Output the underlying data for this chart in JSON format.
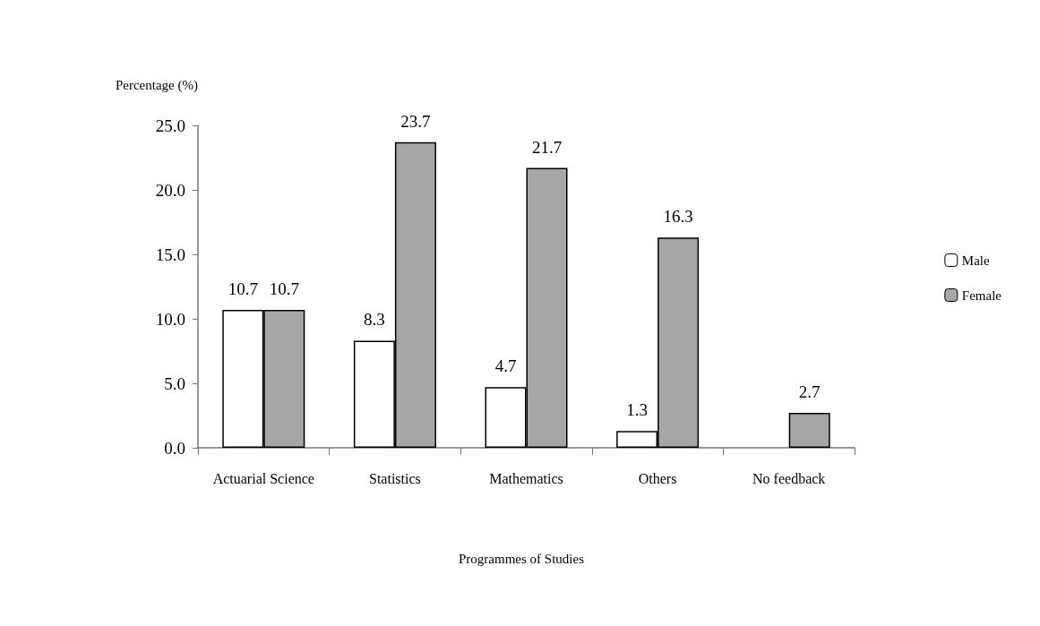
{
  "chart_data": {
    "type": "bar",
    "ylabel": "Percentage (%)",
    "xlabel": "Programmes of Studies",
    "categories": [
      "Actuarial Science",
      "Statistics",
      "Mathematics",
      "Others",
      "No feedback"
    ],
    "series": [
      {
        "name": "Male",
        "color": "#ffffff",
        "values": [
          10.7,
          8.3,
          4.7,
          1.3,
          null
        ]
      },
      {
        "name": "Female",
        "color": "#a6a6a6",
        "values": [
          10.7,
          23.7,
          21.7,
          16.3,
          2.7
        ]
      }
    ],
    "ylim": [
      0,
      25
    ],
    "yticks": [
      {
        "value": 0,
        "label": "0.0"
      },
      {
        "value": 5,
        "label": "5.0"
      },
      {
        "value": 10,
        "label": "10.0"
      },
      {
        "value": 15,
        "label": "15.0"
      },
      {
        "value": 20,
        "label": "20.0"
      },
      {
        "value": 25,
        "label": "25.0"
      }
    ],
    "data_labels": true,
    "grid": false,
    "legend": "right"
  }
}
